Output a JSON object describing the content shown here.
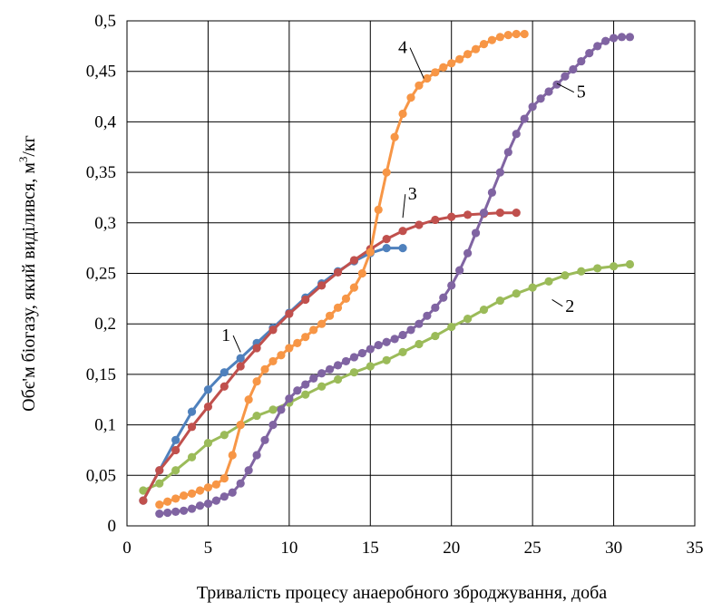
{
  "chart_data": {
    "type": "line",
    "title": "",
    "xlabel": "Тривалість процесу анаеробного зброджування, доба",
    "ylabel_main": "Обє'м біогазу, який виділився, м",
    "ylabel_sup": "3",
    "ylabel_tail": "/кг",
    "xlim": [
      0,
      35
    ],
    "ylim": [
      0,
      0.5
    ],
    "grid": true,
    "legend": "none",
    "x_ticks": [
      {
        "value": 0,
        "label": "0"
      },
      {
        "value": 5,
        "label": "5"
      },
      {
        "value": 10,
        "label": "10"
      },
      {
        "value": 15,
        "label": "15"
      },
      {
        "value": 20,
        "label": "20"
      },
      {
        "value": 25,
        "label": "25"
      },
      {
        "value": 30,
        "label": "30"
      },
      {
        "value": 35,
        "label": "35"
      }
    ],
    "y_ticks": [
      {
        "value": 0,
        "label": "0"
      },
      {
        "value": 0.05,
        "label": "0,05"
      },
      {
        "value": 0.1,
        "label": "0,1"
      },
      {
        "value": 0.15,
        "label": "0,15"
      },
      {
        "value": 0.2,
        "label": "0,2"
      },
      {
        "value": 0.25,
        "label": "0,25"
      },
      {
        "value": 0.3,
        "label": "0,3"
      },
      {
        "value": 0.35,
        "label": "0,35"
      },
      {
        "value": 0.4,
        "label": "0,4"
      },
      {
        "value": 0.45,
        "label": "0,45"
      },
      {
        "value": 0.5,
        "label": "0,5"
      }
    ],
    "series": [
      {
        "label": "1",
        "color": "#4f81bd",
        "label_at": [
          6.1,
          0.183
        ],
        "leader_to": [
          7.0,
          0.172
        ],
        "x": [
          1,
          2,
          3,
          4,
          5,
          6,
          7,
          8,
          9,
          10,
          11,
          12,
          13,
          14,
          15,
          16,
          17
        ],
        "y": [
          0.025,
          0.055,
          0.085,
          0.113,
          0.135,
          0.152,
          0.166,
          0.181,
          0.196,
          0.211,
          0.226,
          0.24,
          0.252,
          0.262,
          0.27,
          0.275,
          0.275
        ]
      },
      {
        "label": "2",
        "color": "#9bbb59",
        "label_at": [
          27.3,
          0.212
        ],
        "leader_to": [
          26.2,
          0.224
        ],
        "x": [
          1,
          2,
          3,
          4,
          5,
          6,
          7,
          8,
          9,
          10,
          11,
          12,
          13,
          14,
          15,
          16,
          17,
          18,
          19,
          20,
          21,
          22,
          23,
          24,
          25,
          26,
          27,
          28,
          29,
          30,
          31
        ],
        "y": [
          0.035,
          0.042,
          0.055,
          0.068,
          0.082,
          0.09,
          0.1,
          0.109,
          0.115,
          0.122,
          0.13,
          0.138,
          0.145,
          0.152,
          0.158,
          0.164,
          0.172,
          0.18,
          0.188,
          0.197,
          0.205,
          0.214,
          0.223,
          0.23,
          0.236,
          0.242,
          0.248,
          0.252,
          0.255,
          0.257,
          0.259
        ]
      },
      {
        "label": "3",
        "color": "#c0504d",
        "label_at": [
          17.6,
          0.323
        ],
        "leader_to": [
          17.0,
          0.305
        ],
        "x": [
          1,
          2,
          3,
          4,
          5,
          6,
          7,
          8,
          9,
          10,
          11,
          12,
          13,
          14,
          15,
          16,
          17,
          18,
          19,
          20,
          21,
          22,
          23,
          24
        ],
        "y": [
          0.025,
          0.055,
          0.075,
          0.098,
          0.118,
          0.138,
          0.158,
          0.176,
          0.194,
          0.21,
          0.224,
          0.238,
          0.251,
          0.263,
          0.274,
          0.284,
          0.292,
          0.298,
          0.303,
          0.306,
          0.308,
          0.309,
          0.31,
          0.31
        ]
      },
      {
        "label": "4",
        "color": "#f79646",
        "label_at": [
          17.0,
          0.468
        ],
        "leader_to": [
          18.3,
          0.443
        ],
        "x": [
          2,
          2.5,
          3,
          3.5,
          4,
          4.5,
          5,
          5.5,
          6,
          6.5,
          7,
          7.5,
          8,
          8.5,
          9,
          9.5,
          10,
          10.5,
          11,
          11.5,
          12,
          12.5,
          13,
          13.5,
          14,
          14.5,
          15,
          15.5,
          16,
          16.5,
          17,
          17.5,
          18,
          18.5,
          19,
          19.5,
          20,
          20.5,
          21,
          21.5,
          22,
          22.5,
          23,
          23.5,
          24,
          24.5
        ],
        "y": [
          0.021,
          0.024,
          0.027,
          0.03,
          0.032,
          0.035,
          0.038,
          0.041,
          0.047,
          0.07,
          0.1,
          0.125,
          0.143,
          0.155,
          0.163,
          0.169,
          0.176,
          0.181,
          0.187,
          0.194,
          0.2,
          0.208,
          0.216,
          0.225,
          0.236,
          0.25,
          0.271,
          0.313,
          0.35,
          0.385,
          0.408,
          0.424,
          0.436,
          0.443,
          0.449,
          0.454,
          0.458,
          0.462,
          0.467,
          0.472,
          0.477,
          0.481,
          0.484,
          0.486,
          0.487,
          0.487
        ]
      },
      {
        "label": "5",
        "color": "#8064a2",
        "label_at": [
          28.0,
          0.424
        ],
        "leader_to": [
          26.5,
          0.438
        ],
        "x": [
          2,
          2.5,
          3,
          3.5,
          4,
          4.5,
          5,
          5.5,
          6,
          6.5,
          7,
          7.5,
          8,
          8.5,
          9,
          9.5,
          10,
          10.5,
          11,
          11.5,
          12,
          12.5,
          13,
          13.5,
          14,
          14.5,
          15,
          15.5,
          16,
          16.5,
          17,
          17.5,
          18,
          18.5,
          19,
          19.5,
          20,
          20.5,
          21,
          21.5,
          22,
          22.5,
          23,
          23.5,
          24,
          24.5,
          25,
          25.5,
          26,
          26.5,
          27,
          27.5,
          28,
          28.5,
          29,
          29.5,
          30,
          30.5,
          31
        ],
        "y": [
          0.012,
          0.013,
          0.014,
          0.015,
          0.017,
          0.02,
          0.022,
          0.025,
          0.029,
          0.033,
          0.042,
          0.055,
          0.07,
          0.085,
          0.1,
          0.115,
          0.126,
          0.134,
          0.14,
          0.146,
          0.151,
          0.155,
          0.159,
          0.163,
          0.167,
          0.171,
          0.175,
          0.179,
          0.182,
          0.185,
          0.189,
          0.194,
          0.2,
          0.208,
          0.216,
          0.226,
          0.238,
          0.253,
          0.27,
          0.29,
          0.31,
          0.33,
          0.35,
          0.37,
          0.388,
          0.403,
          0.415,
          0.423,
          0.43,
          0.437,
          0.445,
          0.452,
          0.46,
          0.468,
          0.475,
          0.48,
          0.483,
          0.484,
          0.484
        ]
      }
    ]
  }
}
